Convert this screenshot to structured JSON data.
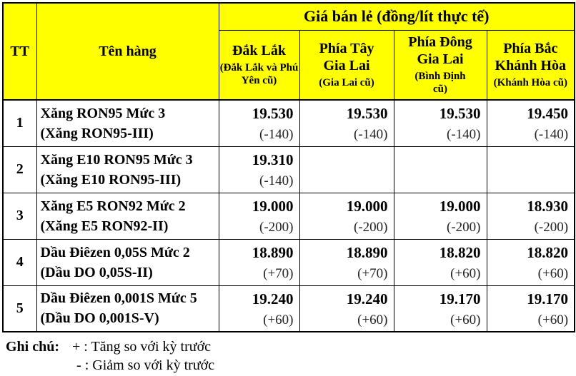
{
  "chart_data": {
    "type": "table",
    "title": "Giá bán lẻ (đồng/lít thực tế)",
    "header": {
      "tt": "TT",
      "product": "Tên hàng",
      "regions": [
        {
          "name": "Đắk Lắk",
          "note": "(Đắk Lắk và Phú Yên cũ)"
        },
        {
          "name": "Phía Tây Gia Lai",
          "note": "(Gia Lai cũ)"
        },
        {
          "name": "Phía Đông Gia Lai",
          "note": "(Bình Định cũ)"
        },
        {
          "name": "Phía Bắc Khánh Hòa",
          "note": "(Khánh Hòa cũ)"
        }
      ]
    },
    "rows": [
      {
        "tt": "1",
        "name": "Xăng RON95 Mức 3",
        "name_alt": "(Xăng RON95-III)",
        "prices": [
          "19.530",
          "19.530",
          "19.530",
          "19.450"
        ],
        "changes": [
          "(-140)",
          "(-140)",
          "(-140)",
          "(-140)"
        ]
      },
      {
        "tt": "2",
        "name": "Xăng E10 RON95 Mức 3",
        "name_alt": "(Xăng E10 RON95-III)",
        "prices": [
          "19.310",
          "",
          "",
          ""
        ],
        "changes": [
          "(-140)",
          "",
          "",
          ""
        ]
      },
      {
        "tt": "3",
        "name": "Xăng E5 RON92 Mức 2",
        "name_alt": "(Xăng E5 RON92-II)",
        "prices": [
          "19.000",
          "19.000",
          "19.000",
          "18.930"
        ],
        "changes": [
          "(-200)",
          "(-200)",
          "(-200)",
          "(-200)"
        ]
      },
      {
        "tt": "4",
        "name": "Dầu Điêzen 0,05S Mức 2",
        "name_alt": "(Dầu DO 0,05S-II)",
        "prices": [
          "18.890",
          "18.890",
          "18.820",
          "18.820"
        ],
        "changes": [
          "(+70)",
          "(+70)",
          "(+60)",
          "(+60)"
        ]
      },
      {
        "tt": "5",
        "name": "Dầu Điêzen 0,001S Mức 5",
        "name_alt": "(Dầu DO 0,001S-V)",
        "prices": [
          "19.240",
          "19.240",
          "19.170",
          "19.170"
        ],
        "changes": [
          "(+60)",
          "(+60)",
          "(+60)",
          "(+60)"
        ]
      }
    ],
    "footnote": {
      "label": "Ghi chú:",
      "line1": "+ : Tăng so với kỳ trước",
      "line2": "- : Giảm so với kỳ trước"
    }
  },
  "colors": {
    "header_bg": "#FFFF00",
    "border": "#000000",
    "text": "#000000",
    "body_bg": "#FFFFFF"
  }
}
